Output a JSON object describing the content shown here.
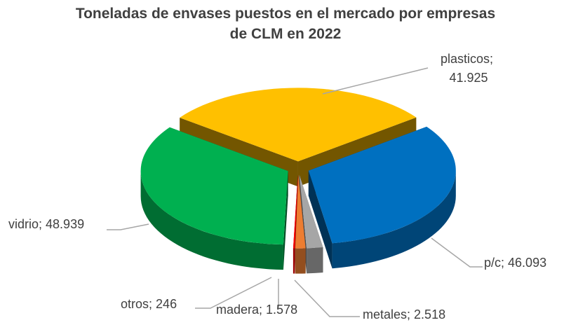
{
  "chart_data": {
    "type": "pie3d",
    "title": "Toneladas de envases puestos en el mercado por empresas de CLM en 2022",
    "categories": [
      "plasticos",
      "p/c",
      "metales",
      "madera",
      "otros",
      "vidrio"
    ],
    "values": [
      41925,
      46093,
      2518,
      1578,
      246,
      48939
    ],
    "value_labels": [
      "41.925",
      "46.093",
      "2.518",
      "1.578",
      "246",
      "48.939"
    ],
    "label_separator": "; ",
    "colors": [
      "#FFC000",
      "#0070C0",
      "#A6A6A6",
      "#ED7D31",
      "#FF0000",
      "#00B050"
    ]
  }
}
